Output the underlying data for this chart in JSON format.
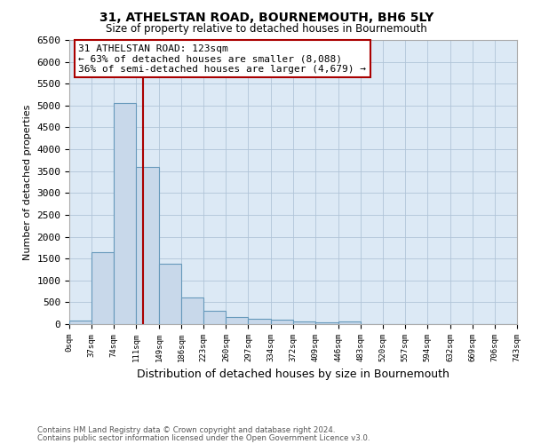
{
  "title": "31, ATHELSTAN ROAD, BOURNEMOUTH, BH6 5LY",
  "subtitle": "Size of property relative to detached houses in Bournemouth",
  "xlabel": "Distribution of detached houses by size in Bournemouth",
  "ylabel": "Number of detached properties",
  "footnote1": "Contains HM Land Registry data © Crown copyright and database right 2024.",
  "footnote2": "Contains public sector information licensed under the Open Government Licence v3.0.",
  "annotation_line1": "31 ATHELSTAN ROAD: 123sqm",
  "annotation_line2": "← 63% of detached houses are smaller (8,088)",
  "annotation_line3": "36% of semi-detached houses are larger (4,679) →",
  "property_size": 123,
  "bin_edges": [
    0,
    37,
    74,
    111,
    149,
    186,
    223,
    260,
    297,
    334,
    372,
    409,
    446,
    483,
    520,
    557,
    594,
    632,
    669,
    706,
    743
  ],
  "bar_heights": [
    75,
    1650,
    5050,
    3600,
    1375,
    600,
    300,
    160,
    130,
    100,
    65,
    40,
    60,
    0,
    0,
    0,
    0,
    0,
    0,
    0
  ],
  "bar_color": "#c8d8ea",
  "bar_edge_color": "#6699bb",
  "red_line_color": "#aa0000",
  "annotation_box_edge_color": "#aa0000",
  "axes_bg_color": "#dce9f5",
  "background_color": "#ffffff",
  "grid_color": "#b0c4d8",
  "ylim": [
    0,
    6500
  ],
  "yticks": [
    0,
    500,
    1000,
    1500,
    2000,
    2500,
    3000,
    3500,
    4000,
    4500,
    5000,
    5500,
    6000,
    6500
  ]
}
